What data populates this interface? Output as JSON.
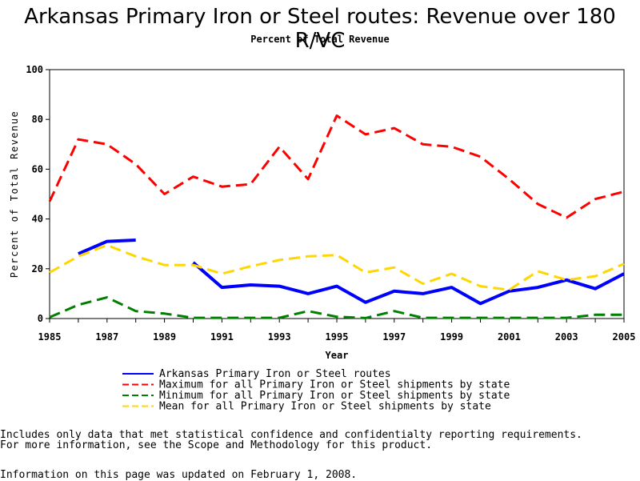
{
  "chart_data": {
    "type": "line",
    "title": "Arkansas Primary Iron or Steel routes: Revenue over 180 R/VC",
    "subtitle": "Percent of Total Revenue",
    "xlabel": "Year",
    "ylabel": "Percent of Total Revenue",
    "xlim": [
      1985,
      2005
    ],
    "ylim": [
      0,
      100
    ],
    "xticks": [
      "1985",
      "1987",
      "1989",
      "1991",
      "1993",
      "1995",
      "1997",
      "1999",
      "2001",
      "2003",
      "2005"
    ],
    "yticks": [
      "0",
      "20",
      "40",
      "60",
      "80",
      "100"
    ],
    "grid": false,
    "legend_position": "bottom",
    "series": [
      {
        "name": "Arkansas Primary Iron or Steel routes",
        "color": "#0000ff",
        "style": "solid",
        "points": [
          [
            1986,
            26
          ],
          [
            1987,
            31
          ],
          [
            1988,
            31.5
          ],
          null,
          [
            1990,
            22.5
          ],
          [
            1991,
            12.5
          ],
          [
            1992,
            13.5
          ],
          [
            1993,
            13
          ],
          [
            1994,
            10
          ],
          [
            1995,
            13
          ],
          [
            1996,
            6.5
          ],
          [
            1997,
            11
          ],
          [
            1998,
            10
          ],
          [
            1999,
            12.5
          ],
          [
            2000,
            6
          ],
          [
            2001,
            11
          ],
          [
            2002,
            12.5
          ],
          [
            2003,
            15.5
          ],
          [
            2004,
            12
          ],
          [
            2005,
            18
          ]
        ]
      },
      {
        "name": "Maximum for all Primary Iron or Steel shipments by state",
        "color": "#ff0000",
        "style": "dashed",
        "points": [
          [
            1985,
            47
          ],
          [
            1986,
            72
          ],
          [
            1987,
            70
          ],
          [
            1988,
            62
          ],
          [
            1989,
            50
          ],
          [
            1990,
            57
          ],
          [
            1991,
            53
          ],
          [
            1992,
            54
          ],
          [
            1993,
            69
          ],
          [
            1994,
            56
          ],
          [
            1995,
            81.5
          ],
          [
            1996,
            74
          ],
          [
            1997,
            76.5
          ],
          [
            1998,
            70
          ],
          [
            1999,
            69
          ],
          [
            2000,
            65
          ],
          [
            2001,
            56
          ],
          [
            2002,
            46
          ],
          [
            2003,
            40.5
          ],
          [
            2004,
            48
          ],
          [
            2005,
            51
          ]
        ]
      },
      {
        "name": "Minimum for all Primary Iron or Steel shipments by state",
        "color": "#008000",
        "style": "dashed",
        "points": [
          [
            1985,
            0.5
          ],
          [
            1986,
            5.5
          ],
          [
            1987,
            8.5
          ],
          [
            1988,
            3
          ],
          [
            1989,
            2
          ],
          [
            1990,
            0.3
          ],
          [
            1991,
            0.3
          ],
          [
            1992,
            0.3
          ],
          [
            1993,
            0.3
          ],
          [
            1994,
            3
          ],
          [
            1995,
            0.7
          ],
          [
            1996,
            0.2
          ],
          [
            1997,
            3
          ],
          [
            1998,
            0.3
          ],
          [
            1999,
            0.3
          ],
          [
            2000,
            0.3
          ],
          [
            2001,
            0.3
          ],
          [
            2002,
            0.3
          ],
          [
            2003,
            0.3
          ],
          [
            2004,
            1.5
          ],
          [
            2005,
            1.5
          ]
        ]
      },
      {
        "name": "Mean for all Primary Iron or Steel shipments by state",
        "color": "#ffd700",
        "style": "dashed",
        "points": [
          [
            1985,
            18.5
          ],
          [
            1986,
            25
          ],
          [
            1987,
            29.5
          ],
          [
            1988,
            25
          ],
          [
            1989,
            21.5
          ],
          [
            1990,
            21.5
          ],
          [
            1991,
            18
          ],
          [
            1992,
            21
          ],
          [
            1993,
            23.5
          ],
          [
            1994,
            25
          ],
          [
            1995,
            25.5
          ],
          [
            1996,
            18.5
          ],
          [
            1997,
            20.5
          ],
          [
            1998,
            14
          ],
          [
            1999,
            18
          ],
          [
            2000,
            13
          ],
          [
            2001,
            11.5
          ],
          [
            2002,
            19
          ],
          [
            2003,
            15.5
          ],
          [
            2004,
            17
          ],
          [
            2005,
            22
          ]
        ]
      }
    ]
  },
  "notes": {
    "line1": "Includes only data that met statistical confidence and confidentialty reporting requirements.",
    "line2": "For more information, see the Scope and Methodology for this product.",
    "updated": "Information on this page was updated on February 1, 2008."
  }
}
